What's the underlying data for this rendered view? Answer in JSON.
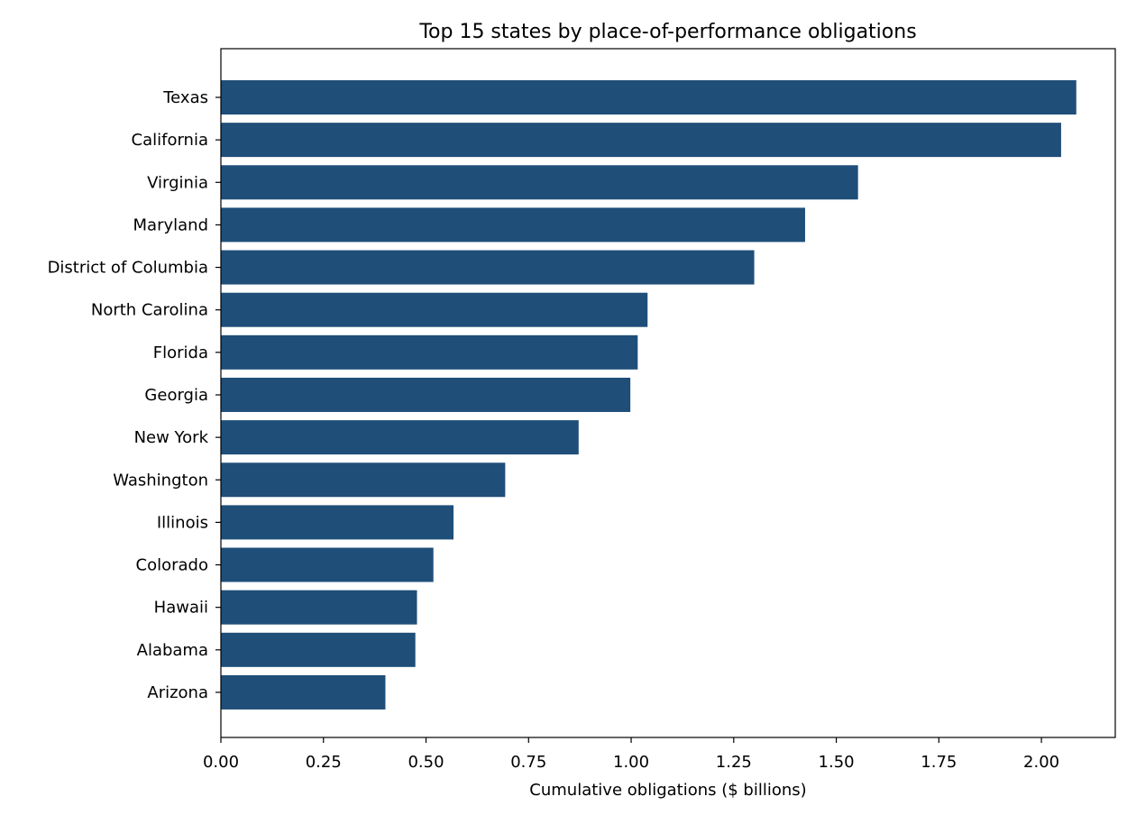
{
  "chart_data": {
    "type": "bar",
    "orientation": "horizontal",
    "title": "Top 15 states by place-of-performance obligations",
    "xlabel": "Cumulative obligations ($ billions)",
    "ylabel": "",
    "xlim": [
      0,
      2.18
    ],
    "xticks": [
      "0.00",
      "0.25",
      "0.50",
      "0.75",
      "1.00",
      "1.25",
      "1.50",
      "1.75",
      "2.00"
    ],
    "grid": false,
    "bar_color": "#1f4e79",
    "categories": [
      "Texas",
      "California",
      "Virginia",
      "Maryland",
      "District of Columbia",
      "North Carolina",
      "Florida",
      "Georgia",
      "New York",
      "Washington",
      "Illinois",
      "Colorado",
      "Hawaii",
      "Alabama",
      "Arizona"
    ],
    "values": [
      2.085,
      2.048,
      1.553,
      1.424,
      1.3,
      1.04,
      1.016,
      0.998,
      0.872,
      0.693,
      0.567,
      0.518,
      0.478,
      0.474,
      0.401
    ]
  }
}
